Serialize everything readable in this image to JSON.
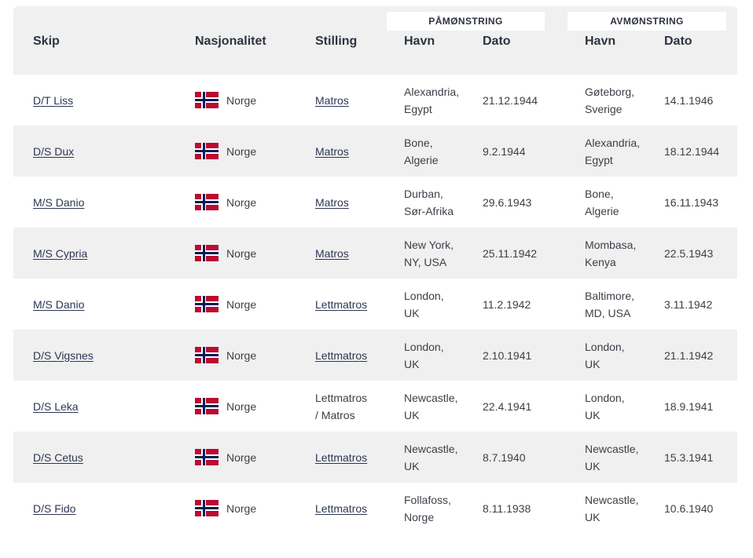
{
  "header": {
    "group_pamonstring": "PÅMØNSTRING",
    "group_avmonstring": "AVMØNSTRING",
    "col_skip": "Skip",
    "col_nasjonalitet": "Nasjonalitet",
    "col_stilling": "Stilling",
    "col_pa_havn": "Havn",
    "col_pa_dato": "Dato",
    "col_av_havn": "Havn",
    "col_av_dato": "Dato"
  },
  "flag_icon": "norway-flag-icon",
  "rows": [
    {
      "skip": "D/T Liss",
      "nasjonalitet": "Norge",
      "stilling": "Matros",
      "stilling_linked": true,
      "pa_havn_1": "Alexandria,",
      "pa_havn_2": "Egypt",
      "pa_dato": "21.12.1944",
      "av_havn_1": "Gøteborg,",
      "av_havn_2": "Sverige",
      "av_dato": "14.1.1946"
    },
    {
      "skip": "D/S Dux",
      "nasjonalitet": "Norge",
      "stilling": "Matros",
      "stilling_linked": true,
      "pa_havn_1": "Bone,",
      "pa_havn_2": "Algerie",
      "pa_dato": "9.2.1944",
      "av_havn_1": "Alexandria,",
      "av_havn_2": "Egypt",
      "av_dato": "18.12.1944"
    },
    {
      "skip": "M/S Danio",
      "nasjonalitet": "Norge",
      "stilling": "Matros",
      "stilling_linked": true,
      "pa_havn_1": "Durban,",
      "pa_havn_2": "Sør-Afrika",
      "pa_dato": "29.6.1943",
      "av_havn_1": "Bone,",
      "av_havn_2": "Algerie",
      "av_dato": "16.11.1943"
    },
    {
      "skip": "M/S Cypria",
      "nasjonalitet": "Norge",
      "stilling": "Matros",
      "stilling_linked": true,
      "pa_havn_1": "New York,",
      "pa_havn_2": "NY, USA",
      "pa_dato": "25.11.1942",
      "av_havn_1": "Mombasa,",
      "av_havn_2": "Kenya",
      "av_dato": "22.5.1943"
    },
    {
      "skip": "M/S Danio",
      "nasjonalitet": "Norge",
      "stilling": "Lettmatros",
      "stilling_linked": true,
      "pa_havn_1": "London,",
      "pa_havn_2": "UK",
      "pa_dato": "11.2.1942",
      "av_havn_1": "Baltimore,",
      "av_havn_2": "MD, USA",
      "av_dato": "3.11.1942"
    },
    {
      "skip": "D/S Vigsnes",
      "nasjonalitet": "Norge",
      "stilling": "Lettmatros",
      "stilling_linked": true,
      "pa_havn_1": "London,",
      "pa_havn_2": "UK",
      "pa_dato": "2.10.1941",
      "av_havn_1": "London,",
      "av_havn_2": "UK",
      "av_dato": "21.1.1942"
    },
    {
      "skip": "D/S Leka",
      "nasjonalitet": "Norge",
      "stilling": "Lettmatros",
      "stilling_2": "/ Matros",
      "stilling_linked": false,
      "pa_havn_1": "Newcastle,",
      "pa_havn_2": "UK",
      "pa_dato": "22.4.1941",
      "av_havn_1": "London,",
      "av_havn_2": "UK",
      "av_dato": "18.9.1941"
    },
    {
      "skip": "D/S Cetus",
      "nasjonalitet": "Norge",
      "stilling": "Lettmatros",
      "stilling_linked": true,
      "pa_havn_1": "Newcastle,",
      "pa_havn_2": "UK",
      "pa_dato": "8.7.1940",
      "av_havn_1": "Newcastle,",
      "av_havn_2": "UK",
      "av_dato": "15.3.1941"
    },
    {
      "skip": "D/S Fido",
      "nasjonalitet": "Norge",
      "stilling": "Lettmatros",
      "stilling_linked": true,
      "pa_havn_1": "Follafoss,",
      "pa_havn_2": "Norge",
      "pa_dato": "8.11.1938",
      "av_havn_1": "Newcastle,",
      "av_havn_2": "UK",
      "av_dato": "10.6.1940"
    }
  ]
}
